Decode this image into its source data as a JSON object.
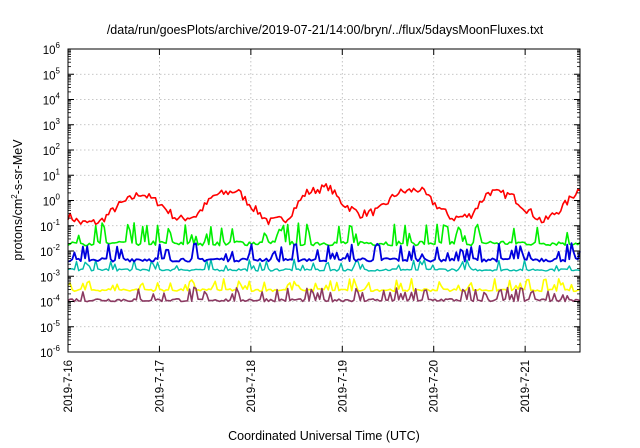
{
  "chart_data": {
    "type": "line",
    "title": "/data/run/goesPlots/archive/2019-07-21/14:00/bryn/../flux/5daysMoonFluxes.txt",
    "xlabel": "Coordinated Universal Time (UTC)",
    "ylabel": {
      "prefix": "protons/cm",
      "sup": "2",
      "suffix": "-s-sr-MeV"
    },
    "yscale": "log",
    "ylim_exp": [
      -6,
      6
    ],
    "ytick_base": "10",
    "ytick_exponents": [
      "-6",
      "-5",
      "-4",
      "-3",
      "-2",
      "-1",
      "0",
      "1",
      "2",
      "3",
      "4",
      "5",
      "6"
    ],
    "xlim_days": [
      0,
      5.6
    ],
    "xticks": [
      {
        "day": 0,
        "label": "2019-7-16"
      },
      {
        "day": 1,
        "label": "2019-7-17"
      },
      {
        "day": 2,
        "label": "2019-7-18"
      },
      {
        "day": 3,
        "label": "2019-7-19"
      },
      {
        "day": 4,
        "label": "2019-7-20"
      },
      {
        "day": 5,
        "label": "2019-7-21"
      }
    ],
    "grid": true,
    "legend": "none",
    "series": [
      {
        "color": "#ff0000",
        "stroke": 1.6,
        "day": [
          0,
          0.15,
          0.35,
          0.55,
          0.8,
          1.0,
          1.2,
          1.4,
          1.6,
          1.85,
          2.0,
          2.2,
          2.4,
          2.6,
          2.85,
          3.0,
          3.2,
          3.4,
          3.6,
          3.85,
          4.0,
          4.2,
          4.4,
          4.6,
          4.85,
          5.0,
          5.2,
          5.4,
          5.6
        ],
        "log10": [
          -0.6,
          -0.9,
          -0.85,
          -0.2,
          0.3,
          -0.1,
          -0.75,
          -0.6,
          0.2,
          0.4,
          -0.2,
          -0.85,
          -0.7,
          0.3,
          0.55,
          -0.1,
          -0.55,
          -0.4,
          0.3,
          0.45,
          -0.1,
          -0.7,
          -0.6,
          0.35,
          0.2,
          -0.3,
          -0.85,
          -0.3,
          0.5
        ],
        "jitter": 0.16
      },
      {
        "color": "#00ee00",
        "stroke": 1.6,
        "day": [
          0,
          5.6
        ],
        "log10": [
          -1.7,
          -1.7
        ],
        "jitter": 0.55
      },
      {
        "color": "#00bbaa",
        "stroke": 1.4,
        "day": [
          0,
          5.6
        ],
        "log10": [
          -2.75,
          -2.75
        ],
        "jitter": 0.28
      },
      {
        "color": "#0000dd",
        "stroke": 1.8,
        "day": [
          0,
          5.6
        ],
        "log10": [
          -2.35,
          -2.35
        ],
        "jitter": 0.45
      },
      {
        "color": "#ffff00",
        "stroke": 1.6,
        "day": [
          0,
          5.6
        ],
        "log10": [
          -3.55,
          -3.55
        ],
        "jitter": 0.3
      },
      {
        "color": "#8b3a62",
        "stroke": 1.6,
        "day": [
          0,
          5.6
        ],
        "log10": [
          -3.95,
          -3.95
        ],
        "jitter": 0.35
      }
    ]
  }
}
